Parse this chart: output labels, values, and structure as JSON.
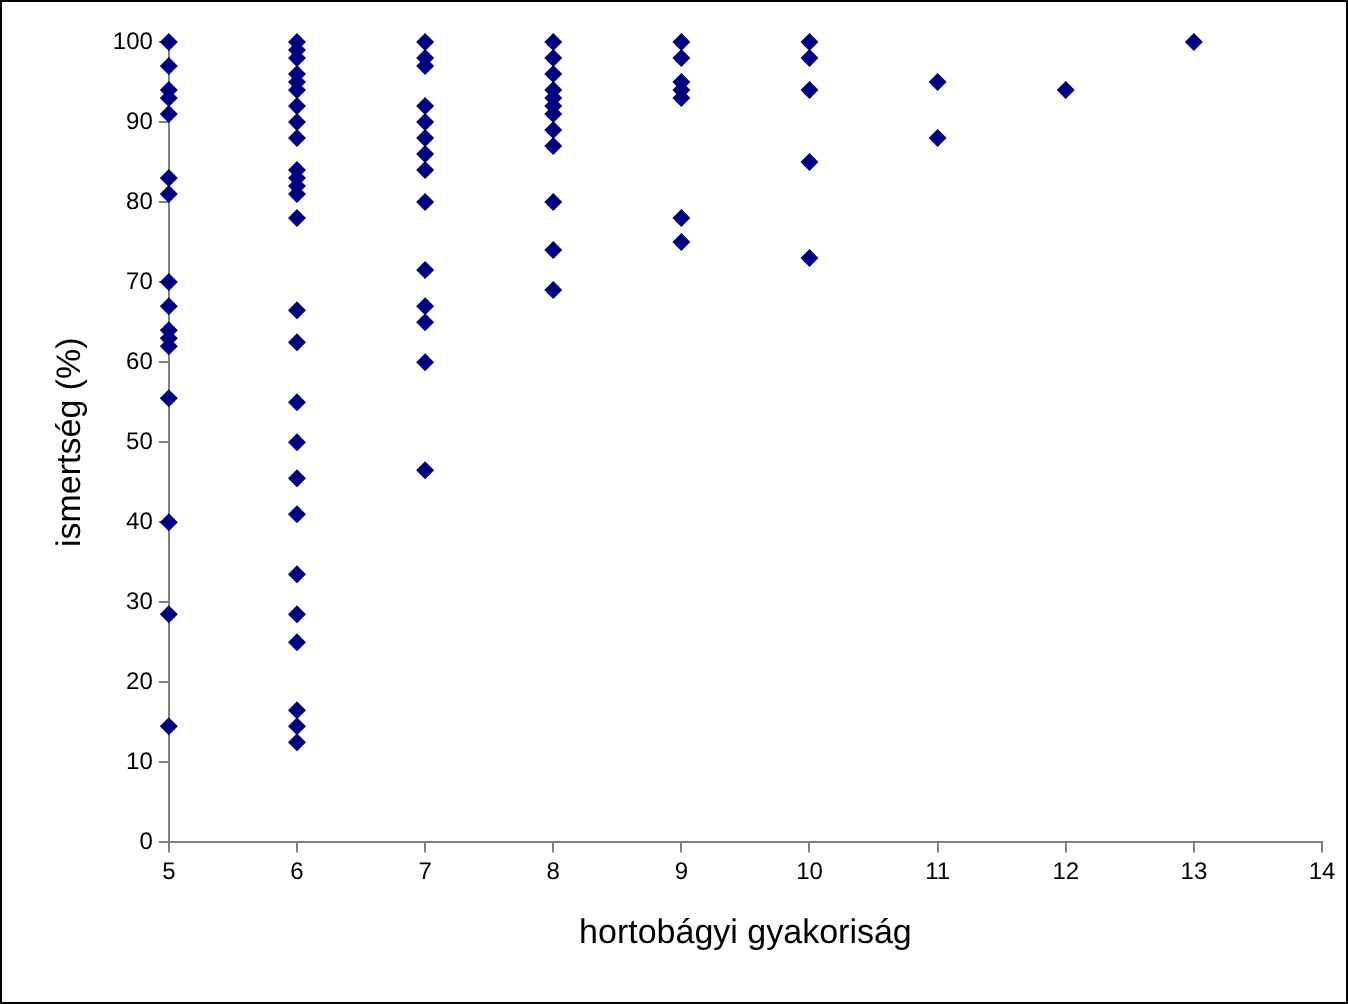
{
  "chart_data": {
    "type": "scatter",
    "xlabel": "hortobágyi gyakoriság",
    "ylabel": "ismertség (%)",
    "xlim": [
      5,
      14
    ],
    "xticks": [
      5,
      6,
      7,
      8,
      9,
      10,
      11,
      12,
      13,
      14
    ],
    "ylim": [
      0,
      100
    ],
    "yticks": [
      0,
      10,
      20,
      30,
      40,
      50,
      60,
      70,
      80,
      90,
      100
    ],
    "grid": false,
    "legend": false,
    "marker": "diamond",
    "series": [
      {
        "color": "#000080",
        "x": [
          5,
          5,
          5,
          5,
          5,
          5,
          5,
          5,
          5,
          5,
          5,
          5,
          5,
          5,
          5,
          5,
          6,
          6,
          6,
          6,
          6,
          6,
          6,
          6,
          6,
          6,
          6,
          6,
          6,
          6,
          6,
          6,
          6,
          6,
          6,
          6,
          6,
          6,
          6,
          6,
          6,
          6,
          7,
          7,
          7,
          7,
          7,
          7,
          7,
          7,
          7,
          7,
          7,
          7,
          7,
          7,
          8,
          8,
          8,
          8,
          8,
          8,
          8,
          8,
          8,
          8,
          8,
          8,
          9,
          9,
          9,
          9,
          9,
          9,
          9,
          10,
          10,
          10,
          10,
          10,
          11,
          11,
          12,
          13
        ],
        "values": [
          100,
          97,
          94,
          93,
          91,
          83,
          81,
          70,
          67,
          64,
          63,
          62,
          55.5,
          40,
          28.5,
          14.5,
          100,
          99,
          98,
          96,
          95,
          94,
          92,
          90,
          88,
          84,
          83,
          82,
          81,
          78,
          66.5,
          62.5,
          55,
          50,
          45.5,
          41,
          33.5,
          28.5,
          25,
          16.5,
          14.5,
          12.5,
          100,
          98,
          97,
          92,
          90,
          88,
          86,
          84,
          80,
          71.5,
          67,
          65,
          60,
          46.5,
          100,
          98,
          96,
          94,
          93,
          92,
          91,
          89,
          87,
          80,
          74,
          69,
          100,
          98,
          95,
          94,
          93,
          78,
          75,
          100,
          98,
          94,
          85,
          73,
          95,
          88,
          94,
          100
        ]
      }
    ]
  }
}
